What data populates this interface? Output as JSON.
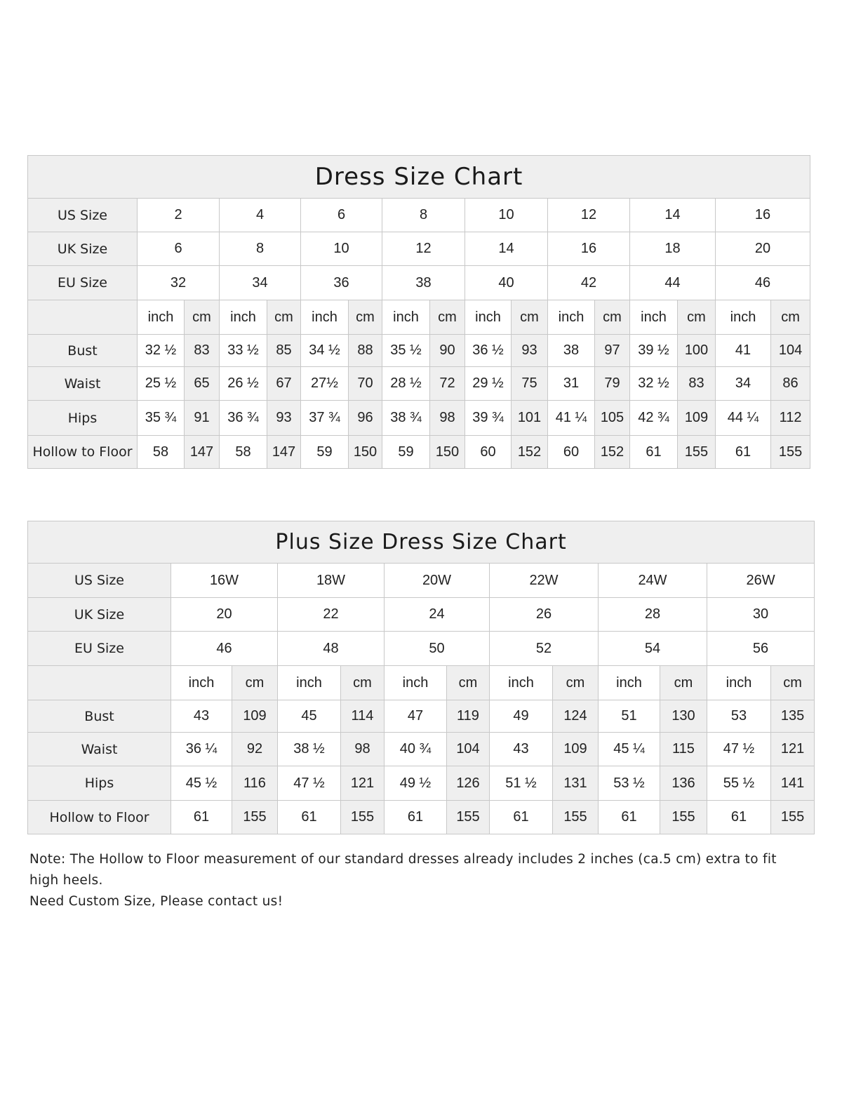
{
  "standard_chart": {
    "title": "Dress Size Chart",
    "row_labels": {
      "us": "US Size",
      "uk": "UK Size",
      "eu": "EU Size",
      "units": "",
      "bust": "Bust",
      "waist": "Waist",
      "hips": "Hips",
      "hollow": "Hollow to Floor"
    },
    "unit_labels": {
      "inch": "inch",
      "cm": "cm"
    },
    "us": [
      "2",
      "4",
      "6",
      "8",
      "10",
      "12",
      "14",
      "16"
    ],
    "uk": [
      "6",
      "8",
      "10",
      "12",
      "14",
      "16",
      "18",
      "20"
    ],
    "eu": [
      "32",
      "34",
      "36",
      "38",
      "40",
      "42",
      "44",
      "46"
    ],
    "bust": [
      [
        "32 ½",
        "83"
      ],
      [
        "33 ½",
        "85"
      ],
      [
        "34 ½",
        "88"
      ],
      [
        "35 ½",
        "90"
      ],
      [
        "36 ½",
        "93"
      ],
      [
        "38",
        "97"
      ],
      [
        "39 ½",
        "100"
      ],
      [
        "41",
        "104"
      ]
    ],
    "waist": [
      [
        "25 ½",
        "65"
      ],
      [
        "26 ½",
        "67"
      ],
      [
        "27½",
        "70"
      ],
      [
        "28 ½",
        "72"
      ],
      [
        "29 ½",
        "75"
      ],
      [
        "31",
        "79"
      ],
      [
        "32 ½",
        "83"
      ],
      [
        "34",
        "86"
      ]
    ],
    "hips": [
      [
        "35 ¾",
        "91"
      ],
      [
        "36 ¾",
        "93"
      ],
      [
        "37 ¾",
        "96"
      ],
      [
        "38 ¾",
        "98"
      ],
      [
        "39 ¾",
        "101"
      ],
      [
        "41 ¼",
        "105"
      ],
      [
        "42 ¾",
        "109"
      ],
      [
        "44 ¼",
        "112"
      ]
    ],
    "hollow": [
      [
        "58",
        "147"
      ],
      [
        "58",
        "147"
      ],
      [
        "59",
        "150"
      ],
      [
        "59",
        "150"
      ],
      [
        "60",
        "152"
      ],
      [
        "60",
        "152"
      ],
      [
        "61",
        "155"
      ],
      [
        "61",
        "155"
      ]
    ]
  },
  "plus_chart": {
    "title": "Plus Size Dress Size Chart",
    "row_labels": {
      "us": "US Size",
      "uk": "UK Size",
      "eu": "EU Size",
      "units": "",
      "bust": "Bust",
      "waist": "Waist",
      "hips": "Hips",
      "hollow": "Hollow to Floor"
    },
    "unit_labels": {
      "inch": "inch",
      "cm": "cm"
    },
    "us": [
      "16W",
      "18W",
      "20W",
      "22W",
      "24W",
      "26W"
    ],
    "uk": [
      "20",
      "22",
      "24",
      "26",
      "28",
      "30"
    ],
    "eu": [
      "46",
      "48",
      "50",
      "52",
      "54",
      "56"
    ],
    "bust": [
      [
        "43",
        "109"
      ],
      [
        "45",
        "114"
      ],
      [
        "47",
        "119"
      ],
      [
        "49",
        "124"
      ],
      [
        "51",
        "130"
      ],
      [
        "53",
        "135"
      ]
    ],
    "waist": [
      [
        "36 ¼",
        "92"
      ],
      [
        "38 ½",
        "98"
      ],
      [
        "40 ¾",
        "104"
      ],
      [
        "43",
        "109"
      ],
      [
        "45 ¼",
        "115"
      ],
      [
        "47 ½",
        "121"
      ]
    ],
    "hips": [
      [
        "45 ½",
        "116"
      ],
      [
        "47 ½",
        "121"
      ],
      [
        "49 ½",
        "126"
      ],
      [
        "51 ½",
        "131"
      ],
      [
        "53 ½",
        "136"
      ],
      [
        "55 ½",
        "141"
      ]
    ],
    "hollow": [
      [
        "61",
        "155"
      ],
      [
        "61",
        "155"
      ],
      [
        "61",
        "155"
      ],
      [
        "61",
        "155"
      ],
      [
        "61",
        "155"
      ],
      [
        "61",
        "155"
      ]
    ]
  },
  "notes": {
    "line1": "Note: The Hollow to Floor measurement of our standard dresses already includes 2 inches (ca.5 cm) extra to fit high heels.",
    "line2": "Need Custom Size, Please contact us!"
  },
  "colors": {
    "header_bg": "#efefef",
    "border": "#c8c8c8",
    "text": "#222222"
  }
}
